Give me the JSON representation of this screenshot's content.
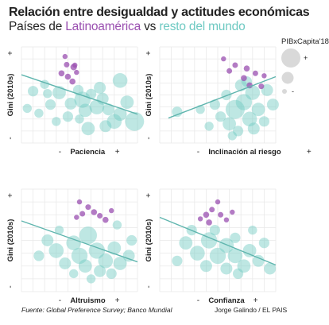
{
  "title": "Relación entre desigualdad y actitudes económicas",
  "subtitle": {
    "prefix": "Países de ",
    "latam": "Latinoamérica",
    "middle": " vs ",
    "world": "resto del mundo"
  },
  "colors": {
    "latam": "#9a4fb0",
    "world": "#6ec9c2",
    "trend": "#5fb5ae",
    "grid": "#e9e9e9",
    "legend_bubble": "#d9d9d9"
  },
  "legend": {
    "title": "PIBxCapita'18",
    "plus": "+",
    "minus": "-"
  },
  "source": "Fuente: Global Preference Survey; Banco Mundial",
  "credit": "Jorge Galindo / EL PAIS",
  "chart_data": [
    {
      "type": "scatter",
      "xlabel": "Paciencia",
      "ylabel": "Gini (2010s)",
      "x_minus": "-",
      "x_plus": "+",
      "y_minus": "-",
      "y_plus": "+",
      "xlim": [
        -1,
        1
      ],
      "ylim": [
        -1,
        1
      ],
      "trend": [
        [
          -1,
          0.42
        ],
        [
          1,
          -0.4
        ]
      ],
      "series": [
        {
          "group": "latam",
          "points": [
            [
              -0.25,
              0.8,
              0.2
            ],
            [
              -0.1,
              0.58,
              0.35
            ],
            [
              -0.22,
              0.63,
              0.25
            ],
            [
              -0.08,
              0.62,
              0.2
            ],
            [
              -0.31,
              0.45,
              0.3
            ],
            [
              -0.2,
              0.38,
              0.3
            ],
            [
              -0.05,
              0.47,
              0.2
            ],
            [
              -0.12,
              0.28,
              0.3
            ]
          ]
        },
        {
          "group": "world",
          "points": [
            [
              -0.8,
              0.08,
              0.4
            ],
            [
              -0.6,
              0.22,
              0.3
            ],
            [
              -0.35,
              0.05,
              0.6
            ],
            [
              -0.15,
              -0.18,
              0.5
            ],
            [
              0.05,
              -0.1,
              0.8
            ],
            [
              0.1,
              -0.32,
              0.6
            ],
            [
              0.3,
              -0.25,
              0.7
            ],
            [
              0.5,
              -0.3,
              0.5
            ],
            [
              0.7,
              -0.4,
              0.6
            ],
            [
              0.95,
              -0.55,
              1.0
            ],
            [
              0.82,
              -0.15,
              0.6
            ],
            [
              0.6,
              -0.55,
              0.7
            ],
            [
              0.4,
              -0.08,
              0.5
            ],
            [
              0.2,
              0.02,
              0.4
            ],
            [
              -0.5,
              -0.2,
              0.4
            ],
            [
              -0.7,
              -0.38,
              0.3
            ],
            [
              -0.2,
              -0.45,
              0.4
            ],
            [
              0.0,
              -0.5,
              0.3
            ],
            [
              0.15,
              -0.7,
              0.6
            ],
            [
              0.45,
              -0.65,
              0.5
            ],
            [
              -0.9,
              -0.28,
              0.3
            ],
            [
              -0.4,
              -0.55,
              0.3
            ],
            [
              -0.55,
              0.03,
              0.3
            ],
            [
              0.7,
              0.3,
              0.7
            ],
            [
              0.35,
              0.15,
              0.5
            ],
            [
              -0.02,
              0.1,
              0.4
            ]
          ]
        }
      ]
    },
    {
      "type": "scatter",
      "xlabel": "Inclinación al riesgo",
      "ylabel": "Gini (2010s)",
      "x_minus": "-",
      "x_plus": "+",
      "y_minus": "-",
      "y_plus": "+",
      "xlim": [
        -1,
        1
      ],
      "ylim": [
        -1,
        1
      ],
      "trend": [
        [
          -0.85,
          -0.48
        ],
        [
          1,
          0.38
        ]
      ],
      "series": [
        {
          "group": "latam",
          "points": [
            [
              0.1,
              0.75,
              0.2
            ],
            [
              0.3,
              0.62,
              0.25
            ],
            [
              0.5,
              0.55,
              0.3
            ],
            [
              0.65,
              0.45,
              0.25
            ],
            [
              0.2,
              0.5,
              0.25
            ],
            [
              0.45,
              0.35,
              0.3
            ],
            [
              0.8,
              0.4,
              0.2
            ],
            [
              0.55,
              0.2,
              0.3
            ],
            [
              0.75,
              0.18,
              0.25
            ]
          ]
        },
        {
          "group": "world",
          "points": [
            [
              0.3,
              -0.3,
              1.0
            ],
            [
              0.45,
              -0.15,
              0.8
            ],
            [
              0.6,
              0.05,
              0.7
            ],
            [
              0.55,
              -0.5,
              0.7
            ],
            [
              0.2,
              -0.6,
              0.6
            ],
            [
              0.7,
              -0.3,
              0.6
            ],
            [
              0.85,
              0.1,
              0.5
            ],
            [
              0.4,
              0.2,
              0.5
            ],
            [
              -0.05,
              -0.2,
              0.4
            ],
            [
              0.05,
              -0.45,
              0.4
            ],
            [
              0.8,
              -0.55,
              0.4
            ],
            [
              0.35,
              -0.75,
              0.4
            ],
            [
              0.15,
              0.0,
              0.4
            ],
            [
              -0.3,
              -0.3,
              0.3
            ],
            [
              -0.7,
              -0.35,
              0.4
            ],
            [
              0.95,
              -0.2,
              0.5
            ],
            [
              0.62,
              -0.7,
              0.5
            ],
            [
              0.25,
              -0.85,
              0.3
            ],
            [
              0.5,
              0.28,
              0.4
            ],
            [
              -0.15,
              -0.65,
              0.3
            ]
          ]
        }
      ]
    },
    {
      "type": "scatter",
      "xlabel": "Altruismo",
      "ylabel": "Gini (2010s)",
      "x_minus": "-",
      "x_plus": "+",
      "y_minus": "-",
      "y_plus": "+",
      "xlim": [
        -1,
        1
      ],
      "ylim": [
        -1,
        1
      ],
      "trend": [
        [
          -1,
          0.38
        ],
        [
          1,
          -0.42
        ]
      ],
      "series": [
        {
          "group": "latam",
          "points": [
            [
              0.0,
              0.75,
              0.2
            ],
            [
              0.15,
              0.65,
              0.25
            ],
            [
              0.25,
              0.55,
              0.3
            ],
            [
              0.35,
              0.48,
              0.25
            ],
            [
              0.45,
              0.4,
              0.3
            ],
            [
              -0.05,
              0.45,
              0.2
            ],
            [
              0.55,
              0.58,
              0.2
            ],
            [
              0.05,
              0.52,
              0.25
            ]
          ]
        },
        {
          "group": "world",
          "points": [
            [
              -0.55,
              0.0,
              0.5
            ],
            [
              -0.4,
              -0.2,
              0.7
            ],
            [
              -0.1,
              -0.05,
              0.7
            ],
            [
              0.0,
              -0.3,
              0.8
            ],
            [
              0.15,
              0.1,
              0.9
            ],
            [
              0.3,
              -0.2,
              0.8
            ],
            [
              0.45,
              -0.4,
              0.7
            ],
            [
              0.6,
              -0.15,
              0.6
            ],
            [
              0.7,
              -0.45,
              0.6
            ],
            [
              0.85,
              -0.3,
              0.5
            ],
            [
              -0.25,
              -0.45,
              0.5
            ],
            [
              0.1,
              -0.5,
              0.6
            ],
            [
              0.35,
              -0.6,
              0.5
            ],
            [
              0.55,
              -0.65,
              0.4
            ],
            [
              -0.7,
              -0.3,
              0.4
            ],
            [
              0.9,
              0.0,
              0.4
            ],
            [
              0.2,
              -0.75,
              0.3
            ],
            [
              -0.1,
              -0.65,
              0.3
            ],
            [
              -0.35,
              0.2,
              0.3
            ],
            [
              0.65,
              0.3,
              0.3
            ]
          ]
        }
      ]
    },
    {
      "type": "scatter",
      "xlabel": "Confianza",
      "ylabel": "Gini (2010s)",
      "x_minus": "-",
      "x_plus": "+",
      "y_minus": "-",
      "y_plus": "+",
      "xlim": [
        -1,
        1
      ],
      "ylim": [
        -1,
        1
      ],
      "trend": [
        [
          -1,
          0.45
        ],
        [
          1,
          -0.48
        ]
      ],
      "series": [
        {
          "group": "latam",
          "points": [
            [
              0.0,
              0.75,
              0.2
            ],
            [
              -0.1,
              0.6,
              0.25
            ],
            [
              -0.2,
              0.5,
              0.3
            ],
            [
              0.05,
              0.5,
              0.25
            ],
            [
              -0.3,
              0.42,
              0.2
            ],
            [
              -0.15,
              0.35,
              0.3
            ],
            [
              0.15,
              0.4,
              0.2
            ],
            [
              0.25,
              0.55,
              0.2
            ]
          ]
        },
        {
          "group": "world",
          "points": [
            [
              -0.55,
              -0.05,
              0.6
            ],
            [
              -0.35,
              -0.25,
              0.7
            ],
            [
              -0.15,
              0.0,
              0.8
            ],
            [
              0.0,
              -0.3,
              0.8
            ],
            [
              0.15,
              -0.1,
              0.7
            ],
            [
              0.3,
              -0.3,
              0.7
            ],
            [
              0.45,
              -0.5,
              0.6
            ],
            [
              0.55,
              -0.2,
              0.6
            ],
            [
              0.7,
              -0.4,
              0.5
            ],
            [
              0.9,
              -0.55,
              0.5
            ],
            [
              -0.7,
              -0.4,
              0.4
            ],
            [
              -0.2,
              -0.5,
              0.5
            ],
            [
              0.15,
              -0.55,
              0.5
            ],
            [
              0.35,
              -0.65,
              0.4
            ],
            [
              -0.45,
              0.2,
              0.4
            ],
            [
              0.6,
              0.2,
              0.3
            ],
            [
              0.8,
              -0.05,
              0.4
            ],
            [
              -0.05,
              0.2,
              0.4
            ],
            [
              0.3,
              0.05,
              0.4
            ]
          ]
        }
      ]
    }
  ]
}
